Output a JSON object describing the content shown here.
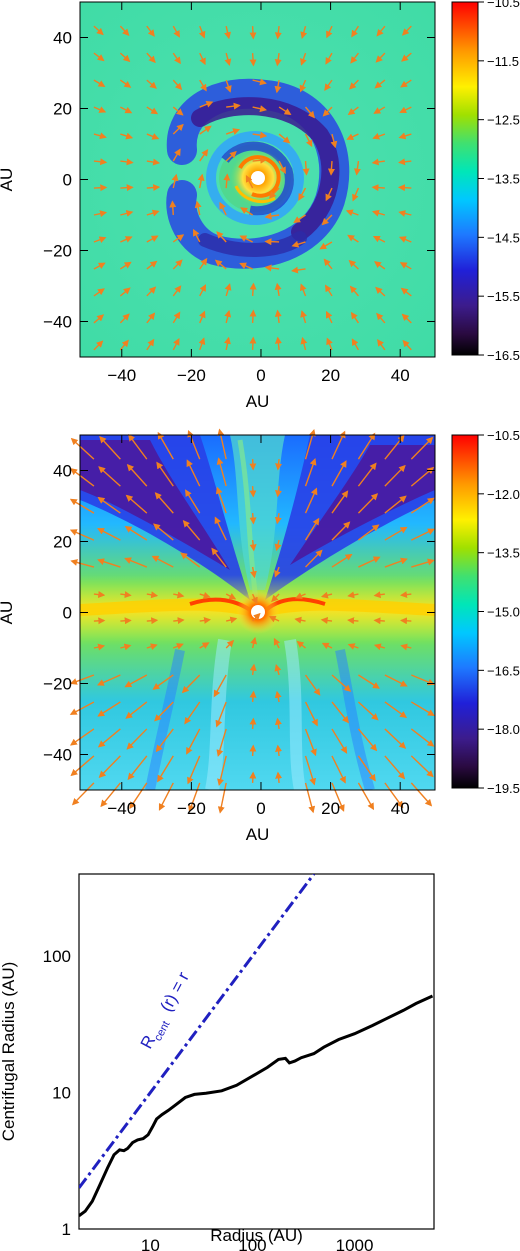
{
  "chart_data": [
    {
      "type": "heatmap",
      "title": "",
      "xlabel": "AU",
      "ylabel": "AU",
      "xlim": [
        -52,
        50
      ],
      "ylim": [
        -50,
        50
      ],
      "xticks": [
        -40,
        -20,
        0,
        20,
        40
      ],
      "yticks": [
        -40,
        -20,
        0,
        20,
        40
      ],
      "colorbar": {
        "min": -16.5,
        "max": -10.5,
        "ticks": [
          -10.5,
          -11.5,
          -12.5,
          -13.5,
          -14.5,
          -15.5,
          -16.5
        ]
      },
      "vector_field": true,
      "features": "rotating disk with spiral arms, low-density gap surrounding central star at origin"
    },
    {
      "type": "heatmap",
      "title": "",
      "xlabel": "AU",
      "ylabel": "AU",
      "xlim": [
        -52,
        50
      ],
      "ylim": [
        -50,
        50
      ],
      "xticks": [
        -40,
        -20,
        0,
        20,
        40
      ],
      "yticks": [
        -40,
        -20,
        0,
        20,
        40
      ],
      "colorbar": {
        "min": -19.5,
        "max": -10.5,
        "ticks": [
          -10.5,
          -12.0,
          -13.5,
          -15.0,
          -16.5,
          -18.0,
          -19.5
        ]
      },
      "vector_field": true,
      "features": "edge-on view: dense midplane disk, low-density bipolar outflow cavities"
    },
    {
      "type": "line",
      "title": "",
      "xlabel": "Radius (AU)",
      "ylabel": "Centrifugal Radius (AU)",
      "xscale": "log",
      "yscale": "log",
      "xlim": [
        2,
        6000
      ],
      "ylim": [
        1,
        400
      ],
      "xticks": [
        10,
        100,
        1000
      ],
      "yticks": [
        1,
        10,
        100
      ],
      "series": [
        {
          "name": "",
          "color": "#000000",
          "style": "solid",
          "x": [
            2,
            2.3,
            2.7,
            3.2,
            3.8,
            4.4,
            5.0,
            5.5,
            6.0,
            6.7,
            7.5,
            8.5,
            9.5,
            10.5,
            11.5,
            13,
            15,
            18,
            22,
            27,
            35,
            50,
            70,
            100,
            140,
            180,
            210,
            230,
            260,
            300,
            400,
            500,
            700,
            1000,
            1500,
            2000,
            3000,
            4000,
            5800
          ],
          "y": [
            1.25,
            1.35,
            1.6,
            2.1,
            2.8,
            3.5,
            3.8,
            3.75,
            3.9,
            4.3,
            4.5,
            4.6,
            4.9,
            5.6,
            6.4,
            6.9,
            7.4,
            8.2,
            9.2,
            9.7,
            9.9,
            10.3,
            11.3,
            13.2,
            15.3,
            17.5,
            17.8,
            16.5,
            17.0,
            18.0,
            19.3,
            21.5,
            24.5,
            27.0,
            31.0,
            34.5,
            40.0,
            45.0,
            51.0
          ]
        },
        {
          "name": "",
          "color": "#2020c0",
          "style": "dash-dot",
          "x": [
            2,
            400
          ],
          "y": [
            2,
            400
          ]
        }
      ],
      "annotations": [
        {
          "text": "R",
          "sub": "cent",
          "rest": "(r) = r",
          "color": "#2020c0"
        }
      ]
    }
  ],
  "icons": [
    "star-marker-icon",
    "velocity-arrow-icon"
  ]
}
